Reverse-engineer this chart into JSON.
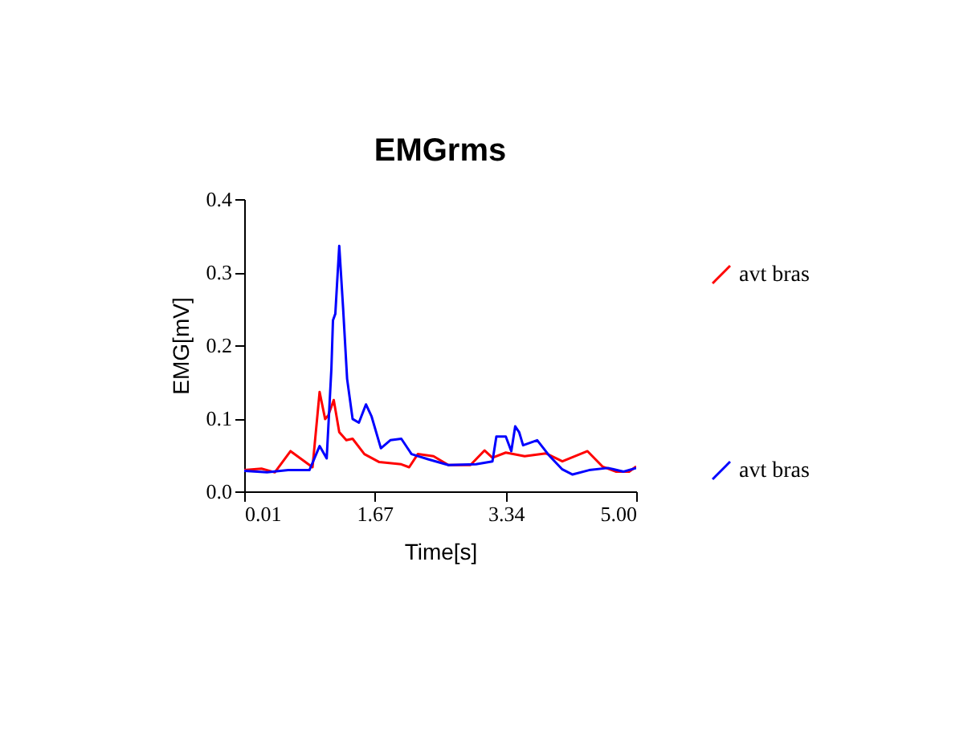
{
  "chart_data": {
    "type": "line",
    "title": "EMGrms",
    "xlabel": "Time[s]",
    "ylabel": "EMG[mV]",
    "xlim": [
      0.01,
      5.0
    ],
    "ylim": [
      0,
      0.4
    ],
    "xticks": [
      {
        "value": 0.01,
        "label": "0.01"
      },
      {
        "value": 1.67,
        "label": "1.67"
      },
      {
        "value": 3.34,
        "label": "3.34"
      },
      {
        "value": 5.0,
        "label": "5.00"
      }
    ],
    "yticks": [
      {
        "value": 0,
        "label": "0.0"
      },
      {
        "value": 0.1,
        "label": "0.1"
      },
      {
        "value": 0.2,
        "label": "0.2"
      },
      {
        "value": 0.3,
        "label": "0.3"
      },
      {
        "value": 0.4,
        "label": "0.4"
      }
    ],
    "grid": false,
    "legend": "right",
    "marker": "none",
    "line_style": "solid",
    "series": [
      {
        "name": "avt bras",
        "color": "#ff0000",
        "x": [
          0.01,
          0.23,
          0.4,
          0.6,
          0.74,
          0.88,
          0.97,
          1.04,
          1.08,
          1.15,
          1.22,
          1.31,
          1.39,
          1.54,
          1.73,
          2.01,
          2.11,
          2.22,
          2.42,
          2.61,
          2.89,
          3.07,
          3.17,
          3.34,
          3.58,
          3.85,
          4.06,
          4.38,
          4.57,
          4.74,
          4.91,
          5.0
        ],
        "values": [
          0.029,
          0.031,
          0.026,
          0.055,
          0.044,
          0.033,
          0.136,
          0.099,
          0.104,
          0.125,
          0.081,
          0.07,
          0.072,
          0.051,
          0.04,
          0.037,
          0.033,
          0.051,
          0.048,
          0.036,
          0.036,
          0.056,
          0.046,
          0.053,
          0.048,
          0.052,
          0.041,
          0.055,
          0.034,
          0.027,
          0.027,
          0.034
        ]
      },
      {
        "name": "avt bras",
        "color": "#0000ff",
        "x": [
          0.01,
          0.3,
          0.57,
          0.84,
          0.9,
          0.97,
          1.06,
          1.12,
          1.14,
          1.17,
          1.22,
          1.27,
          1.32,
          1.39,
          1.47,
          1.56,
          1.63,
          1.75,
          1.87,
          2.01,
          2.14,
          2.35,
          2.61,
          2.96,
          3.17,
          3.22,
          3.34,
          3.41,
          3.46,
          3.51,
          3.56,
          3.74,
          3.9,
          4.06,
          4.19,
          4.4,
          4.64,
          4.84,
          5.0
        ],
        "values": [
          0.028,
          0.026,
          0.029,
          0.029,
          0.044,
          0.062,
          0.045,
          0.168,
          0.234,
          0.243,
          0.336,
          0.249,
          0.154,
          0.099,
          0.094,
          0.119,
          0.103,
          0.059,
          0.07,
          0.072,
          0.051,
          0.044,
          0.036,
          0.037,
          0.041,
          0.075,
          0.075,
          0.055,
          0.089,
          0.081,
          0.063,
          0.07,
          0.048,
          0.03,
          0.023,
          0.029,
          0.032,
          0.027,
          0.032
        ]
      }
    ]
  }
}
